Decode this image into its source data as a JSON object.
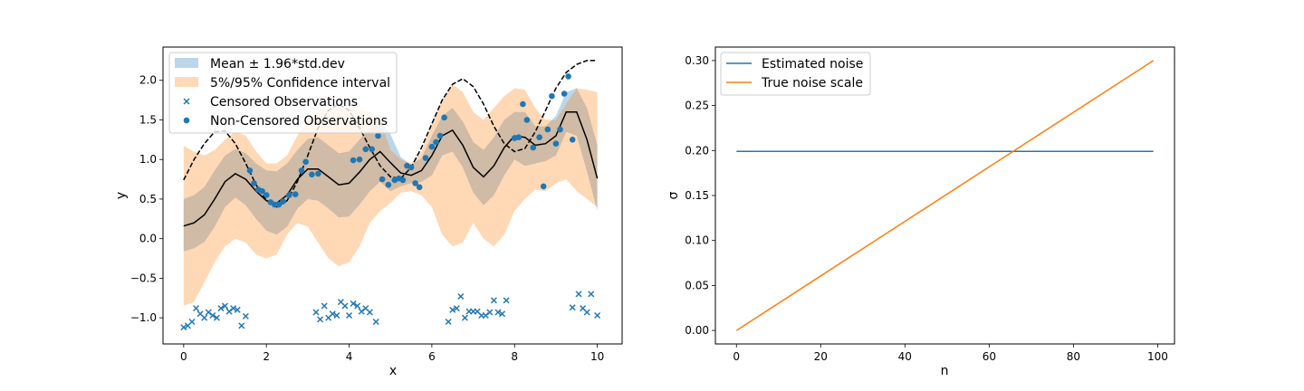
{
  "chart_data": [
    {
      "type": "line",
      "xlabel": "x",
      "ylabel": "y",
      "xlim": [
        -0.5,
        10.6
      ],
      "ylim": [
        -1.33,
        2.42
      ],
      "xticks": [
        0,
        2,
        4,
        6,
        8,
        10
      ],
      "yticks": [
        -1.0,
        -0.5,
        0.0,
        0.5,
        1.0,
        1.5,
        2.0
      ],
      "ytick_labels": [
        "−1.0",
        "−0.5",
        "0.0",
        "0.5",
        "1.0",
        "1.5",
        "2.0"
      ],
      "legend": {
        "placement": "upper-left",
        "entries": [
          {
            "label": "Mean ± 1.96*std.dev",
            "kind": "patch",
            "color": "#1f77b4"
          },
          {
            "label": "5%/95% Confidence interval",
            "kind": "patch",
            "color": "#ff7f0e"
          },
          {
            "label": "Censored Observations",
            "kind": "cross",
            "color": "#1f77b4"
          },
          {
            "label": "Non-Censored Observations",
            "kind": "dot",
            "color": "#1f77b4"
          }
        ]
      },
      "colors": {
        "mean_band": "#1f77b4",
        "ci_band": "#ff7f0e",
        "mean": "#000000",
        "truth": "#000000",
        "points": "#1f77b4"
      },
      "x": [
        0,
        0.25,
        0.5,
        0.75,
        1.0,
        1.25,
        1.5,
        1.75,
        2.0,
        2.25,
        2.5,
        2.75,
        3.0,
        3.25,
        3.5,
        3.75,
        4.0,
        4.25,
        4.5,
        4.75,
        5.0,
        5.25,
        5.5,
        5.75,
        6.0,
        6.25,
        6.5,
        6.75,
        7.0,
        7.25,
        7.5,
        7.75,
        8.0,
        8.25,
        8.5,
        8.75,
        9.0,
        9.25,
        9.5,
        9.75,
        10.0
      ],
      "mean": [
        0.16,
        0.2,
        0.3,
        0.5,
        0.72,
        0.82,
        0.75,
        0.6,
        0.48,
        0.45,
        0.55,
        0.75,
        0.88,
        0.88,
        0.78,
        0.68,
        0.7,
        0.84,
        1.0,
        1.1,
        0.96,
        0.83,
        0.8,
        0.86,
        1.05,
        1.3,
        1.37,
        1.18,
        0.9,
        0.78,
        0.92,
        1.15,
        1.3,
        1.28,
        1.18,
        1.2,
        1.3,
        1.6,
        1.6,
        1.25,
        0.76
      ],
      "mean_lower": [
        -0.16,
        -0.12,
        -0.04,
        0.15,
        0.4,
        0.52,
        0.42,
        0.25,
        0.1,
        0.05,
        0.15,
        0.38,
        0.5,
        0.48,
        0.38,
        0.27,
        0.28,
        0.43,
        0.6,
        0.72,
        0.6,
        0.66,
        0.7,
        0.72,
        0.8,
        1.05,
        1.1,
        0.9,
        0.58,
        0.42,
        0.55,
        0.8,
        1.0,
        0.92,
        0.95,
        0.98,
        1.05,
        1.35,
        1.3,
        0.85,
        0.35
      ],
      "mean_upper": [
        0.5,
        0.55,
        0.65,
        0.86,
        1.05,
        1.13,
        1.08,
        0.95,
        0.86,
        0.85,
        0.95,
        1.12,
        1.26,
        1.28,
        1.18,
        1.08,
        1.1,
        1.25,
        1.4,
        1.48,
        1.32,
        1.03,
        0.93,
        1.02,
        1.3,
        1.55,
        1.65,
        1.48,
        1.22,
        1.12,
        1.28,
        1.5,
        1.6,
        1.6,
        1.42,
        1.42,
        1.55,
        1.85,
        1.9,
        1.65,
        1.18
      ],
      "ci_lower": [
        -0.85,
        -0.8,
        -0.55,
        -0.3,
        -0.1,
        0.0,
        -0.05,
        -0.2,
        -0.25,
        -0.2,
        0.05,
        0.2,
        0.15,
        -0.05,
        -0.25,
        -0.35,
        -0.3,
        -0.1,
        0.2,
        0.35,
        0.45,
        0.58,
        0.6,
        0.55,
        0.4,
        0.05,
        -0.1,
        -0.05,
        0.2,
        0.0,
        -0.1,
        0.05,
        0.35,
        0.5,
        0.62,
        0.6,
        0.7,
        0.75,
        0.6,
        0.5,
        0.4
      ],
      "ci_upper": [
        1.17,
        1.1,
        1.05,
        1.12,
        1.25,
        1.35,
        1.3,
        1.1,
        0.95,
        0.95,
        1.05,
        1.3,
        1.5,
        1.6,
        1.65,
        1.65,
        1.65,
        1.62,
        1.6,
        1.5,
        1.12,
        1.0,
        0.95,
        1.1,
        1.45,
        1.75,
        1.95,
        1.85,
        1.6,
        1.5,
        1.65,
        1.8,
        1.9,
        1.88,
        1.65,
        1.5,
        1.5,
        1.7,
        1.9,
        1.88,
        1.85
      ],
      "truth": [
        0.74,
        1.0,
        1.2,
        1.35,
        1.36,
        1.2,
        0.95,
        0.68,
        0.48,
        0.4,
        0.48,
        0.72,
        1.05,
        1.4,
        1.62,
        1.7,
        1.62,
        1.4,
        1.15,
        0.92,
        0.78,
        0.76,
        0.9,
        1.15,
        1.45,
        1.75,
        1.95,
        2.02,
        1.92,
        1.7,
        1.42,
        1.2,
        1.1,
        1.14,
        1.35,
        1.62,
        1.9,
        2.1,
        2.2,
        2.25,
        2.25
      ],
      "non_censored": [
        [
          1.6,
          0.86
        ],
        [
          1.7,
          0.7
        ],
        [
          1.8,
          0.62
        ],
        [
          1.9,
          0.6
        ],
        [
          2.0,
          0.55
        ],
        [
          2.1,
          0.46
        ],
        [
          2.2,
          0.43
        ],
        [
          2.3,
          0.43
        ],
        [
          2.4,
          0.47
        ],
        [
          2.55,
          0.55
        ],
        [
          2.7,
          0.56
        ],
        [
          2.85,
          0.86
        ],
        [
          2.95,
          0.97
        ],
        [
          3.1,
          0.81
        ],
        [
          3.25,
          0.82
        ],
        [
          4.1,
          0.99
        ],
        [
          4.25,
          1.0
        ],
        [
          4.4,
          1.13
        ],
        [
          4.55,
          1.13
        ],
        [
          4.7,
          1.3
        ],
        [
          4.8,
          0.75
        ],
        [
          4.95,
          0.68
        ],
        [
          5.1,
          0.74
        ],
        [
          5.2,
          0.76
        ],
        [
          5.3,
          0.74
        ],
        [
          5.4,
          0.92
        ],
        [
          5.5,
          0.9
        ],
        [
          5.6,
          0.7
        ],
        [
          5.7,
          0.65
        ],
        [
          5.85,
          1.02
        ],
        [
          6.0,
          1.16
        ],
        [
          6.1,
          1.22
        ],
        [
          6.2,
          1.3
        ],
        [
          6.3,
          1.53
        ],
        [
          8.0,
          1.27
        ],
        [
          8.1,
          1.28
        ],
        [
          8.2,
          1.7
        ],
        [
          8.3,
          1.5
        ],
        [
          8.45,
          1.15
        ],
        [
          8.6,
          1.28
        ],
        [
          8.7,
          0.66
        ],
        [
          8.8,
          1.38
        ],
        [
          8.9,
          1.8
        ],
        [
          9.0,
          1.2
        ],
        [
          9.1,
          1.38
        ],
        [
          9.2,
          1.83
        ],
        [
          9.3,
          2.05
        ],
        [
          9.4,
          1.25
        ]
      ],
      "censored": [
        [
          0.0,
          -1.12
        ],
        [
          0.1,
          -1.1
        ],
        [
          0.2,
          -1.05
        ],
        [
          0.3,
          -0.88
        ],
        [
          0.4,
          -0.95
        ],
        [
          0.5,
          -1.0
        ],
        [
          0.6,
          -0.93
        ],
        [
          0.7,
          -0.97
        ],
        [
          0.8,
          -1.0
        ],
        [
          0.9,
          -0.88
        ],
        [
          1.0,
          -0.85
        ],
        [
          1.1,
          -0.92
        ],
        [
          1.2,
          -0.88
        ],
        [
          1.3,
          -0.9
        ],
        [
          1.4,
          -1.1
        ],
        [
          1.5,
          -0.98
        ],
        [
          3.2,
          -0.93
        ],
        [
          3.3,
          -1.02
        ],
        [
          3.4,
          -0.85
        ],
        [
          3.5,
          -1.0
        ],
        [
          3.6,
          -0.95
        ],
        [
          3.7,
          -0.97
        ],
        [
          3.8,
          -0.8
        ],
        [
          3.9,
          -0.85
        ],
        [
          4.0,
          -0.97
        ],
        [
          4.1,
          -0.82
        ],
        [
          4.2,
          -0.85
        ],
        [
          4.3,
          -0.92
        ],
        [
          4.4,
          -0.88
        ],
        [
          4.5,
          -0.93
        ],
        [
          4.65,
          -1.05
        ],
        [
          6.4,
          -1.05
        ],
        [
          6.5,
          -0.9
        ],
        [
          6.6,
          -0.88
        ],
        [
          6.7,
          -0.73
        ],
        [
          6.8,
          -1.0
        ],
        [
          6.9,
          -0.92
        ],
        [
          7.0,
          -0.92
        ],
        [
          7.1,
          -0.92
        ],
        [
          7.2,
          -0.97
        ],
        [
          7.3,
          -0.97
        ],
        [
          7.4,
          -0.93
        ],
        [
          7.5,
          -0.78
        ],
        [
          7.6,
          -0.93
        ],
        [
          7.7,
          -0.95
        ],
        [
          7.8,
          -0.78
        ],
        [
          9.4,
          -0.87
        ],
        [
          9.55,
          -0.7
        ],
        [
          9.65,
          -0.88
        ],
        [
          9.75,
          -0.93
        ],
        [
          9.85,
          -0.7
        ],
        [
          10.0,
          -0.97
        ]
      ]
    },
    {
      "type": "line",
      "xlabel": "n",
      "ylabel": "σ",
      "xlim": [
        -5,
        104
      ],
      "ylim": [
        -0.015,
        0.315
      ],
      "xticks": [
        0,
        20,
        40,
        60,
        80,
        100
      ],
      "yticks": [
        0.0,
        0.05,
        0.1,
        0.15,
        0.2,
        0.25,
        0.3
      ],
      "ytick_labels": [
        "0.00",
        "0.05",
        "0.10",
        "0.15",
        "0.20",
        "0.25",
        "0.30"
      ],
      "legend": {
        "placement": "upper-left",
        "entries": [
          {
            "label": "Estimated noise",
            "kind": "line",
            "color": "#1f77b4"
          },
          {
            "label": "True noise scale",
            "kind": "line",
            "color": "#ff7f0e"
          }
        ]
      },
      "series": [
        {
          "name": "Estimated noise",
          "color": "#1f77b4",
          "x": [
            0,
            99
          ],
          "y": [
            0.199,
            0.199
          ]
        },
        {
          "name": "True noise scale",
          "color": "#ff7f0e",
          "x": [
            0,
            99
          ],
          "y": [
            0.0,
            0.3
          ]
        }
      ]
    }
  ]
}
